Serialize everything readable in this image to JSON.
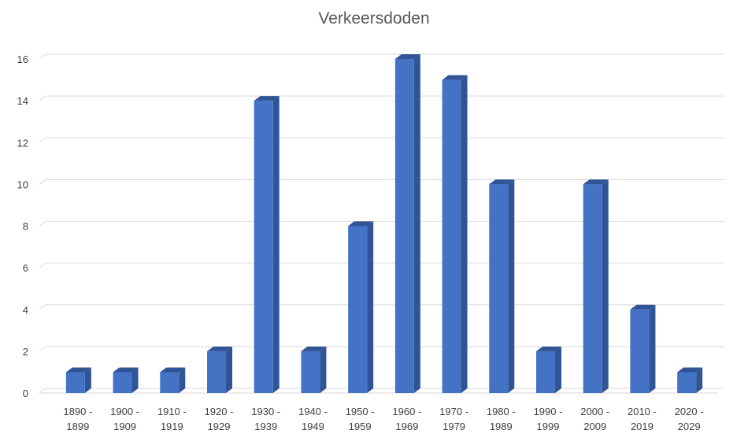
{
  "chart_data": {
    "type": "bar",
    "title": "Verkeersdoden",
    "xlabel": "",
    "ylabel": "",
    "categories": [
      [
        "1890 -",
        "1899"
      ],
      [
        "1900 -",
        "1909"
      ],
      [
        "1910 -",
        "1919"
      ],
      [
        "1920 -",
        "1929"
      ],
      [
        "1930 -",
        "1939"
      ],
      [
        "1940 -",
        "1949"
      ],
      [
        "1950 -",
        "1959"
      ],
      [
        "1960 -",
        "1969"
      ],
      [
        "1970 -",
        "1979"
      ],
      [
        "1980 -",
        "1989"
      ],
      [
        "1990 -",
        "1999"
      ],
      [
        "2000 -",
        "2009"
      ],
      [
        "2010 -",
        "2019"
      ],
      [
        "2020 -",
        "2029"
      ]
    ],
    "values": [
      1,
      1,
      1,
      2,
      14,
      2,
      8,
      16,
      15,
      10,
      2,
      10,
      4,
      1
    ],
    "ylim": [
      0,
      16
    ],
    "yticks": [
      0,
      2,
      4,
      6,
      8,
      10,
      12,
      14,
      16
    ],
    "grid": true,
    "legend": "none",
    "style": "3d-column",
    "colors": {
      "bar_front": "#4472c4",
      "bar_side": "#2f5597",
      "bar_top": "#305496",
      "grid": "#d9d9d9",
      "text": "#404040",
      "title": "#595959"
    }
  }
}
